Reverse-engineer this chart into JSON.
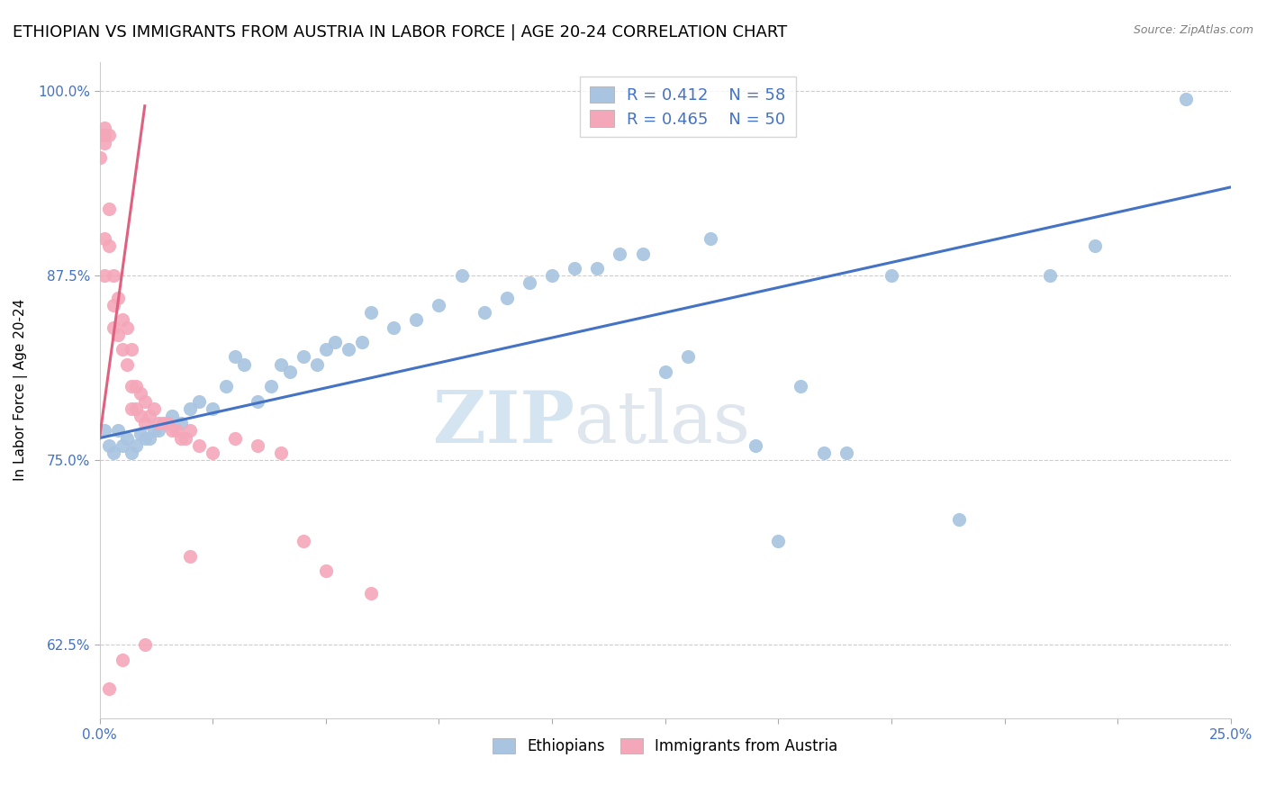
{
  "title": "ETHIOPIAN VS IMMIGRANTS FROM AUSTRIA IN LABOR FORCE | AGE 20-24 CORRELATION CHART",
  "source": "Source: ZipAtlas.com",
  "ylabel": "In Labor Force | Age 20-24",
  "xlim": [
    0.0,
    0.25
  ],
  "ylim": [
    0.575,
    1.02
  ],
  "xticks": [
    0.0,
    0.025,
    0.05,
    0.075,
    0.1,
    0.125,
    0.15,
    0.175,
    0.2,
    0.225,
    0.25
  ],
  "xtick_labels": [
    "0.0%",
    "",
    "",
    "",
    "",
    "",
    "",
    "",
    "",
    "",
    "25.0%"
  ],
  "yticks": [
    0.625,
    0.75,
    0.875,
    1.0
  ],
  "ytick_labels": [
    "62.5%",
    "75.0%",
    "87.5%",
    "100.0%"
  ],
  "blue_color": "#a8c4e0",
  "pink_color": "#f4a7b9",
  "blue_line_color": "#4472c4",
  "pink_line_color": "#e06080",
  "legend_r_blue": "R = 0.412",
  "legend_n_blue": "N = 58",
  "legend_r_pink": "R = 0.465",
  "legend_n_pink": "N = 50",
  "legend_label_blue": "Ethiopians",
  "legend_label_pink": "Immigrants from Austria",
  "watermark_zip": "ZIP",
  "watermark_atlas": "atlas",
  "title_fontsize": 13,
  "axis_label_fontsize": 11,
  "tick_fontsize": 11,
  "blue_scatter_x": [
    0.001,
    0.002,
    0.003,
    0.004,
    0.005,
    0.006,
    0.007,
    0.008,
    0.009,
    0.01,
    0.011,
    0.012,
    0.013,
    0.015,
    0.016,
    0.018,
    0.02,
    0.022,
    0.025,
    0.028,
    0.03,
    0.032,
    0.035,
    0.038,
    0.04,
    0.042,
    0.045,
    0.048,
    0.05,
    0.052,
    0.055,
    0.058,
    0.06,
    0.065,
    0.07,
    0.075,
    0.08,
    0.085,
    0.09,
    0.095,
    0.1,
    0.11,
    0.12,
    0.13,
    0.15,
    0.16,
    0.175,
    0.19,
    0.21,
    0.22,
    0.135,
    0.145,
    0.155,
    0.105,
    0.115,
    0.125,
    0.165,
    0.24
  ],
  "blue_scatter_y": [
    0.77,
    0.76,
    0.755,
    0.77,
    0.76,
    0.765,
    0.755,
    0.76,
    0.768,
    0.765,
    0.765,
    0.77,
    0.77,
    0.775,
    0.78,
    0.775,
    0.785,
    0.79,
    0.785,
    0.8,
    0.82,
    0.815,
    0.79,
    0.8,
    0.815,
    0.81,
    0.82,
    0.815,
    0.825,
    0.83,
    0.825,
    0.83,
    0.85,
    0.84,
    0.845,
    0.855,
    0.875,
    0.85,
    0.86,
    0.87,
    0.875,
    0.88,
    0.89,
    0.82,
    0.695,
    0.755,
    0.875,
    0.71,
    0.875,
    0.895,
    0.9,
    0.76,
    0.8,
    0.88,
    0.89,
    0.81,
    0.755,
    0.995
  ],
  "pink_scatter_x": [
    0.0,
    0.0,
    0.001,
    0.001,
    0.001,
    0.001,
    0.001,
    0.002,
    0.002,
    0.002,
    0.003,
    0.003,
    0.003,
    0.004,
    0.004,
    0.005,
    0.005,
    0.006,
    0.006,
    0.007,
    0.007,
    0.007,
    0.008,
    0.008,
    0.009,
    0.009,
    0.01,
    0.01,
    0.011,
    0.012,
    0.013,
    0.014,
    0.015,
    0.016,
    0.017,
    0.018,
    0.019,
    0.02,
    0.022,
    0.025,
    0.03,
    0.035,
    0.04,
    0.045,
    0.05,
    0.06,
    0.02,
    0.01,
    0.005,
    0.002
  ],
  "pink_scatter_y": [
    0.97,
    0.955,
    0.975,
    0.97,
    0.965,
    0.9,
    0.875,
    0.97,
    0.92,
    0.895,
    0.875,
    0.855,
    0.84,
    0.86,
    0.835,
    0.845,
    0.825,
    0.84,
    0.815,
    0.825,
    0.8,
    0.785,
    0.8,
    0.785,
    0.795,
    0.78,
    0.79,
    0.775,
    0.78,
    0.785,
    0.775,
    0.775,
    0.775,
    0.77,
    0.77,
    0.765,
    0.765,
    0.77,
    0.76,
    0.755,
    0.765,
    0.76,
    0.755,
    0.695,
    0.675,
    0.66,
    0.685,
    0.625,
    0.615,
    0.595
  ],
  "blue_line_x0": 0.0,
  "blue_line_x1": 0.25,
  "blue_line_y0": 0.765,
  "blue_line_y1": 0.935,
  "pink_line_x0": 0.0,
  "pink_line_x1": 0.01,
  "pink_line_y0": 0.765,
  "pink_line_y1": 0.99
}
